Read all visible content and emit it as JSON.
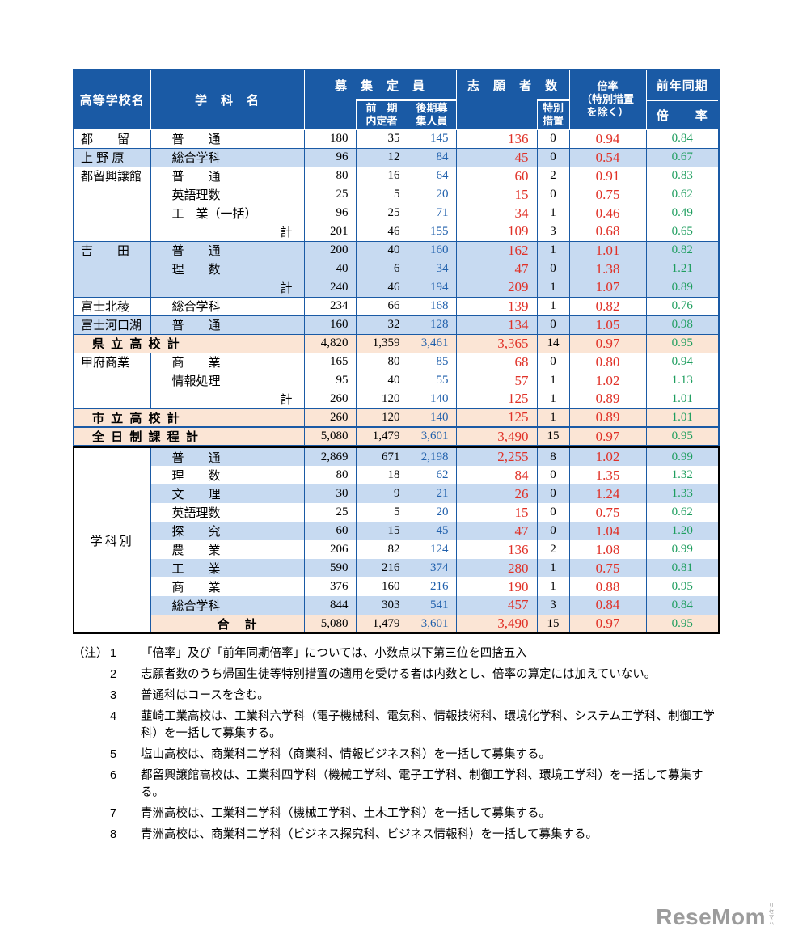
{
  "colors": {
    "header_bg": "#1a5aa5",
    "border_blue": "#1a5aa5",
    "row_blue": "#c7daf1",
    "row_peach": "#fbe5d5",
    "num_red": "#e03127",
    "num_blue": "#2060ac",
    "num_green": "#1f9e5f"
  },
  "table": {
    "header": {
      "school": "高等学校名",
      "department": "学　科　名",
      "capacity": "募　集　定　員",
      "early": "前　期\n内定者",
      "late": "後期募\n集人員",
      "applicants": "志　願　者　数",
      "special": "特別\n措置",
      "ratio": "倍率\n（特別措置\nを除く）",
      "prev_top": "前年同期",
      "prev_bottom": "倍　　率"
    },
    "dept_section_label": "学科別",
    "main_rows": [
      {
        "type": "d",
        "bg": "w",
        "top": true,
        "school": "都　　留",
        "dept": "普　　通",
        "cap": "180",
        "early": "35",
        "late": "145",
        "app": "136",
        "sp": "0",
        "ratio": "0.94",
        "prev": "0.84"
      },
      {
        "type": "d",
        "bg": "b",
        "top": true,
        "school": "上 野 原",
        "dept": "総合学科",
        "cap": "96",
        "early": "12",
        "late": "84",
        "app": "45",
        "sp": "0",
        "ratio": "0.54",
        "prev": "0.67"
      },
      {
        "type": "d",
        "bg": "w",
        "top": true,
        "school": "都留興譲館",
        "dept": "普　　通",
        "cap": "80",
        "early": "16",
        "late": "64",
        "app": "60",
        "sp": "2",
        "ratio": "0.91",
        "prev": "0.83"
      },
      {
        "type": "d",
        "bg": "w",
        "school": "",
        "dept": "英語理数",
        "cap": "25",
        "early": "5",
        "late": "20",
        "app": "15",
        "sp": "0",
        "ratio": "0.75",
        "prev": "0.62"
      },
      {
        "type": "d",
        "bg": "w",
        "school": "",
        "dept": "工　業（一括）",
        "cap": "96",
        "early": "25",
        "late": "71",
        "app": "34",
        "sp": "1",
        "ratio": "0.46",
        "prev": "0.49"
      },
      {
        "type": "d",
        "bg": "w",
        "school": "",
        "dept": "計",
        "da": "r",
        "cap": "201",
        "early": "46",
        "late": "155",
        "app": "109",
        "sp": "3",
        "ratio": "0.68",
        "prev": "0.65"
      },
      {
        "type": "d",
        "bg": "b",
        "top": true,
        "school": "吉　　田",
        "dept": "普　　通",
        "cap": "200",
        "early": "40",
        "late": "160",
        "app": "162",
        "sp": "1",
        "ratio": "1.01",
        "prev": "0.82"
      },
      {
        "type": "d",
        "bg": "b",
        "school": "",
        "dept": "理　　数",
        "cap": "40",
        "early": "6",
        "late": "34",
        "app": "47",
        "sp": "0",
        "ratio": "1.38",
        "prev": "1.21"
      },
      {
        "type": "d",
        "bg": "b",
        "school": "",
        "dept": "計",
        "da": "r",
        "cap": "240",
        "early": "46",
        "late": "194",
        "app": "209",
        "sp": "1",
        "ratio": "1.07",
        "prev": "0.89"
      },
      {
        "type": "d",
        "bg": "w",
        "top": true,
        "school": "富士北稜",
        "dept": "総合学科",
        "cap": "234",
        "early": "66",
        "late": "168",
        "app": "139",
        "sp": "1",
        "ratio": "0.82",
        "prev": "0.76"
      },
      {
        "type": "d",
        "bg": "b",
        "top": true,
        "school": "富士河口湖",
        "dept": "普　　通",
        "cap": "160",
        "early": "32",
        "late": "128",
        "app": "134",
        "sp": "0",
        "ratio": "1.05",
        "prev": "0.98"
      },
      {
        "type": "s",
        "bg": "p",
        "top": true,
        "label": "県 立 高 校 計",
        "cap": "4,820",
        "early": "1,359",
        "late": "3,461",
        "app": "3,365",
        "sp": "14",
        "ratio": "0.97",
        "prev": "0.95"
      },
      {
        "type": "d",
        "bg": "w",
        "top": true,
        "school": "甲府商業",
        "dept": "商　　業",
        "cap": "165",
        "early": "80",
        "late": "85",
        "app": "68",
        "sp": "0",
        "ratio": "0.80",
        "prev": "0.94"
      },
      {
        "type": "d",
        "bg": "w",
        "school": "",
        "dept": "情報処理",
        "cap": "95",
        "early": "40",
        "late": "55",
        "app": "57",
        "sp": "1",
        "ratio": "1.02",
        "prev": "1.13"
      },
      {
        "type": "d",
        "bg": "w",
        "school": "",
        "dept": "計",
        "da": "r",
        "cap": "260",
        "early": "120",
        "late": "140",
        "app": "125",
        "sp": "1",
        "ratio": "0.89",
        "prev": "1.01"
      },
      {
        "type": "s",
        "bg": "p",
        "top": true,
        "label": "市 立 高 校 計",
        "cap": "260",
        "early": "120",
        "late": "140",
        "app": "125",
        "sp": "1",
        "ratio": "0.89",
        "prev": "1.01"
      },
      {
        "type": "s",
        "bg": "p",
        "thick": true,
        "label": "全 日 制 課 程 計",
        "cap": "5,080",
        "early": "1,479",
        "late": "3,601",
        "app": "3,490",
        "sp": "15",
        "ratio": "0.97",
        "prev": "0.95"
      }
    ],
    "dept_rows": [
      {
        "type": "d",
        "bg": "b",
        "dept": "普　　通",
        "cap": "2,869",
        "early": "671",
        "late": "2,198",
        "app": "2,255",
        "sp": "8",
        "ratio": "1.02",
        "prev": "0.99"
      },
      {
        "type": "d",
        "bg": "w",
        "dept": "理　　数",
        "cap": "80",
        "early": "18",
        "late": "62",
        "app": "84",
        "sp": "0",
        "ratio": "1.35",
        "prev": "1.32"
      },
      {
        "type": "d",
        "bg": "b",
        "dept": "文　　理",
        "cap": "30",
        "early": "9",
        "late": "21",
        "app": "26",
        "sp": "0",
        "ratio": "1.24",
        "prev": "1.33"
      },
      {
        "type": "d",
        "bg": "w",
        "dept": "英語理数",
        "cap": "25",
        "early": "5",
        "late": "20",
        "app": "15",
        "sp": "0",
        "ratio": "0.75",
        "prev": "0.62"
      },
      {
        "type": "d",
        "bg": "b",
        "dept": "探　　究",
        "cap": "60",
        "early": "15",
        "late": "45",
        "app": "47",
        "sp": "0",
        "ratio": "1.04",
        "prev": "1.20"
      },
      {
        "type": "d",
        "bg": "w",
        "dept": "農　　業",
        "cap": "206",
        "early": "82",
        "late": "124",
        "app": "136",
        "sp": "2",
        "ratio": "1.08",
        "prev": "0.99"
      },
      {
        "type": "d",
        "bg": "b",
        "dept": "工　　業",
        "cap": "590",
        "early": "216",
        "late": "374",
        "app": "280",
        "sp": "1",
        "ratio": "0.75",
        "prev": "0.81"
      },
      {
        "type": "d",
        "bg": "w",
        "dept": "商　　業",
        "cap": "376",
        "early": "160",
        "late": "216",
        "app": "190",
        "sp": "1",
        "ratio": "0.88",
        "prev": "0.95"
      },
      {
        "type": "d",
        "bg": "b",
        "dept": "総合学科",
        "cap": "844",
        "early": "303",
        "late": "541",
        "app": "457",
        "sp": "3",
        "ratio": "0.84",
        "prev": "0.84"
      },
      {
        "type": "s",
        "bg": "p",
        "top": true,
        "dept": "合　計",
        "cap": "5,080",
        "early": "1,479",
        "late": "3,601",
        "app": "3,490",
        "sp": "15",
        "ratio": "0.97",
        "prev": "0.95"
      }
    ]
  },
  "notes": {
    "prefix": "（注）",
    "items": [
      {
        "n": "1",
        "t": "「倍率」及び「前年同期倍率」については、小数点以下第三位を四捨五入"
      },
      {
        "n": "2",
        "t": "志願者数のうち帰国生徒等特別措置の適用を受ける者は内数とし、倍率の算定には加えていない。"
      },
      {
        "n": "3",
        "t": "普通科はコースを含む。"
      },
      {
        "n": "4",
        "t": "韮崎工業高校は、工業科六学科（電子機械科、電気科、情報技術科、環境化学科、システム工学科、制御工学科）を一括して募集する。"
      },
      {
        "n": "5",
        "t": "塩山高校は、商業科二学科（商業科、情報ビジネス科）を一括して募集する。"
      },
      {
        "n": "6",
        "t": "都留興譲館高校は、工業科四学科（機械工学科、電子工学科、制御工学科、環境工学科）を一括して募集する。"
      },
      {
        "n": "7",
        "t": "青洲高校は、工業科二学科（機械工学科、土木工学科）を一括して募集する。"
      },
      {
        "n": "8",
        "t": "青洲高校は、商業科二学科（ビジネス探究科、ビジネス情報科）を一括して募集する。"
      }
    ]
  },
  "logo": {
    "text": "ReseMom",
    "sub": "リセマム"
  }
}
